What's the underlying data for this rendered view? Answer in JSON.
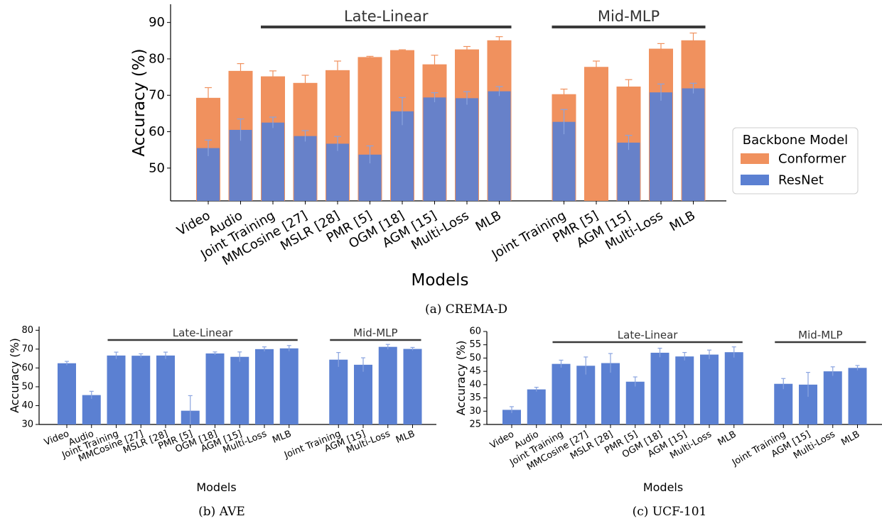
{
  "captions": {
    "a": "(a) CREMA-D",
    "b": "(b) AVE",
    "c": "(c) UCF-101"
  },
  "colors": {
    "conformer": "#F0915E",
    "resnet": "#5B80D2",
    "group_bar": "#3a3a3a",
    "err_conformer": "#F0915E",
    "err_resnet": "#8aa4e0"
  },
  "chart_data": [
    {
      "type": "bar",
      "caption": "(a) CREMA-D",
      "xlabel": "Models",
      "ylabel": "Accuracy (%)",
      "ylim": [
        41,
        95
      ],
      "yticks": [
        50,
        60,
        70,
        80,
        90
      ],
      "legend": {
        "title": "Backbone Model",
        "placement": "right"
      },
      "groups": [
        {
          "label": "Late-Linear",
          "from": 2,
          "to": 9
        },
        {
          "label": "Mid-MLP",
          "from": 11,
          "to": 15
        }
      ],
      "categories": [
        "Video",
        "Audio",
        "Joint Training",
        "MMCosine [27]",
        "MSLR [28]",
        "PMR [5]",
        "OGM [18]",
        "AGM [15]",
        "Multi-Loss",
        "MLB",
        "",
        "Joint Training",
        "PMR [5]",
        "AGM [15]",
        "Multi-Loss",
        "MLB"
      ],
      "series": [
        {
          "name": "Conformer",
          "values": [
            69.3,
            76.7,
            75.2,
            73.4,
            76.9,
            80.5,
            82.4,
            78.5,
            82.6,
            85.1,
            null,
            70.3,
            77.8,
            72.4,
            82.8,
            85.1
          ],
          "errors": [
            2.8,
            2.0,
            1.5,
            2.1,
            2.5,
            0.2,
            0.1,
            2.5,
            0.8,
            1.0,
            null,
            1.4,
            1.6,
            1.9,
            1.4,
            2.0
          ]
        },
        {
          "name": "ResNet",
          "values": [
            55.5,
            60.5,
            62.5,
            58.8,
            56.7,
            53.7,
            65.6,
            69.4,
            69.2,
            71.1,
            null,
            62.7,
            null,
            57.0,
            70.8,
            71.9
          ],
          "errors": [
            2.2,
            3.0,
            1.5,
            1.5,
            2.0,
            2.4,
            3.8,
            1.3,
            1.8,
            1.3,
            null,
            3.4,
            null,
            2.0,
            2.3,
            1.4
          ]
        }
      ]
    },
    {
      "type": "bar",
      "caption": "(b) AVE",
      "xlabel": "Models",
      "ylabel": "Accuracy (%)",
      "ylim": [
        30,
        82
      ],
      "yticks": [
        30,
        40,
        50,
        60,
        70,
        80
      ],
      "groups": [
        {
          "label": "Late-Linear",
          "from": 2,
          "to": 9
        },
        {
          "label": "Mid-MLP",
          "from": 11,
          "to": 14
        }
      ],
      "categories": [
        "Video",
        "Audio",
        "Joint Training",
        "MMCosine [27]",
        "MSLR [28]",
        "PMR [5]",
        "OGM [18]",
        "AGM [15]",
        "Multi-Loss",
        "MLB",
        "",
        "Joint Training",
        "AGM [15]",
        "Multi-Loss",
        "MLB"
      ],
      "series": [
        {
          "name": "ResNet",
          "values": [
            62.5,
            45.6,
            66.6,
            66.5,
            66.6,
            37.3,
            67.7,
            65.9,
            70.0,
            70.4,
            null,
            64.4,
            61.7,
            71.2,
            70.1
          ],
          "errors": [
            1.0,
            2.0,
            1.8,
            1.0,
            1.8,
            8.0,
            0.8,
            2.6,
            1.2,
            1.5,
            null,
            3.8,
            3.7,
            1.3,
            0.8
          ]
        }
      ]
    },
    {
      "type": "bar",
      "caption": "(c) UCF-101",
      "xlabel": "Models",
      "ylabel": "Accuracy (%)",
      "ylim": [
        25,
        60
      ],
      "yticks": [
        25,
        30,
        35,
        40,
        45,
        50,
        55,
        60
      ],
      "groups": [
        {
          "label": "Late-Linear",
          "from": 2,
          "to": 9
        },
        {
          "label": "Mid-MLP",
          "from": 11,
          "to": 14
        }
      ],
      "categories": [
        "Video",
        "Audio",
        "Joint Training",
        "MMCosine [27]",
        "MSLR [28]",
        "PMR [5]",
        "OGM [18]",
        "AGM [15]",
        "Multi-Loss",
        "MLB",
        "",
        "Joint Training",
        "AGM [15]",
        "Multi-Loss",
        "MLB"
      ],
      "series": [
        {
          "name": "ResNet",
          "values": [
            30.5,
            38.2,
            47.8,
            47.1,
            48.1,
            41.1,
            52.0,
            50.6,
            51.3,
            52.2,
            null,
            40.3,
            40.0,
            45.0,
            46.3
          ],
          "errors": [
            1.2,
            0.8,
            1.4,
            3.3,
            3.6,
            1.8,
            1.7,
            1.5,
            1.7,
            2.0,
            null,
            2.0,
            4.6,
            1.7,
            0.9
          ]
        }
      ]
    }
  ]
}
